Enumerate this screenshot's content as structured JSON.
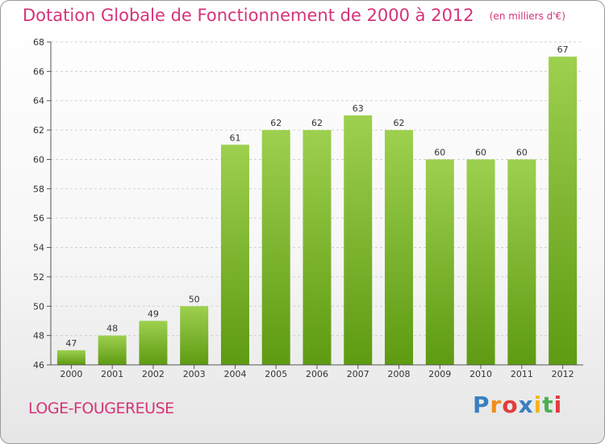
{
  "page": {
    "title": "Dotation Globale de Fonctionnement de 2000 à 2012",
    "unit_note": "(en milliers d'€)",
    "commune": "LOGE-FOUGEREUSE",
    "logo": {
      "text": "Proxiti",
      "letters": [
        "P",
        "r",
        "o",
        "x",
        "i",
        "t",
        "i"
      ],
      "colors": [
        "#3a7fc2",
        "#f28c1a",
        "#e23d3d",
        "#3a7fc2",
        "#f4b41a",
        "#4caf50",
        "#e23d3d"
      ]
    }
  },
  "colors": {
    "title": "#d6337a",
    "bar_light": "#9dd04e",
    "bar_dark": "#5e9a12",
    "grid": "#d0d0d0",
    "axis": "#555555",
    "text": "#333333"
  },
  "chart_data": {
    "type": "bar",
    "title": "Dotation Globale de Fonctionnement de 2000 à 2012",
    "xlabel": "",
    "ylabel": "",
    "categories": [
      "2000",
      "2001",
      "2002",
      "2003",
      "2004",
      "2005",
      "2006",
      "2007",
      "2008",
      "2009",
      "2010",
      "2011",
      "2012"
    ],
    "values": [
      47,
      48,
      49,
      50,
      61,
      62,
      62,
      63,
      62,
      60,
      60,
      60,
      67
    ],
    "ylim": [
      46,
      68
    ],
    "yticks": [
      46,
      48,
      50,
      52,
      54,
      56,
      58,
      60,
      62,
      64,
      66,
      68
    ],
    "grid": true,
    "data_labels": true
  }
}
